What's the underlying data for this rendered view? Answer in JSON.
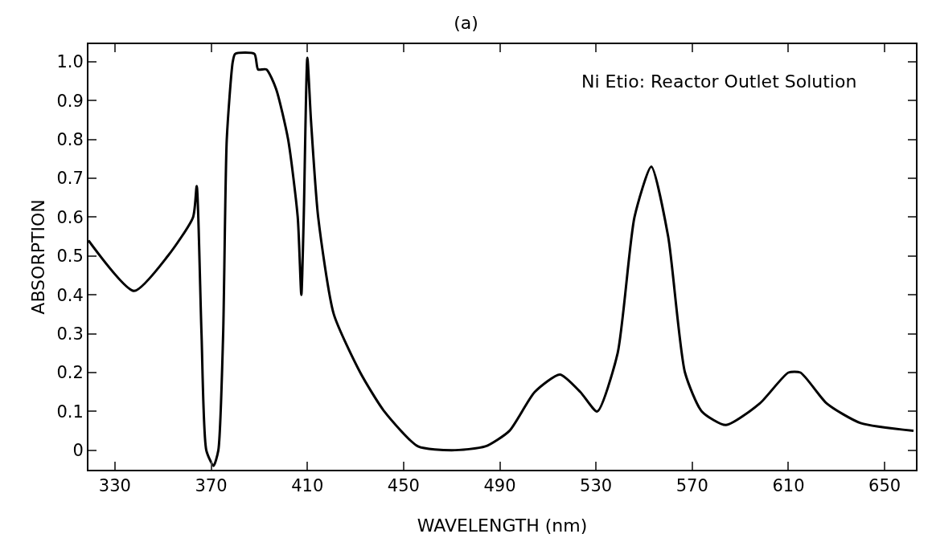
{
  "chart_data": {
    "type": "line",
    "title": "(a)",
    "xlabel": "WAVELENGTH (nm)",
    "ylabel": "ABSORPTION",
    "annotations": [
      "Ni Etio: Reactor Outlet Solution"
    ],
    "x": [
      319,
      338,
      352,
      362.5,
      364,
      366,
      368,
      371,
      373,
      375,
      376.5,
      379,
      380,
      388,
      389.5,
      393,
      397,
      402,
      406,
      407.5,
      408.5,
      410,
      411.5,
      414.5,
      421,
      432,
      442,
      456,
      470,
      484,
      494,
      504.5,
      515,
      523.5,
      530.5,
      539,
      546,
      553,
      560,
      567,
      574,
      584,
      598,
      610,
      615,
      626,
      640,
      662
    ],
    "series": [
      {
        "color": "#000000",
        "values": [
          0.54,
          0.41,
          0.5,
          0.6,
          0.68,
          0.3,
          0.0,
          -0.04,
          0.0,
          0.3,
          0.8,
          1.0,
          1.02,
          1.02,
          0.98,
          0.98,
          0.93,
          0.8,
          0.6,
          0.4,
          0.6,
          1.01,
          0.85,
          0.6,
          0.35,
          0.2,
          0.1,
          0.01,
          0,
          0.01,
          0.05,
          0.15,
          0.195,
          0.15,
          0.1,
          0.25,
          0.6,
          0.73,
          0.55,
          0.2,
          0.1,
          0.065,
          0.12,
          0.2,
          0.2,
          0.12,
          0.07,
          0.05
        ]
      }
    ],
    "xlim": [
      319,
      663
    ],
    "ylim": [
      -0.05,
      1.045
    ],
    "xticks": [
      330,
      370,
      410,
      450,
      490,
      530,
      570,
      610,
      650
    ],
    "yticks": [
      0,
      0.1,
      0.2,
      0.3,
      0.4,
      0.5,
      0.6,
      0.7,
      0.8,
      0.9,
      {
        "value": 1,
        "label": "1.0"
      }
    ],
    "grid": false,
    "marker": "none",
    "line_style": "solid"
  }
}
